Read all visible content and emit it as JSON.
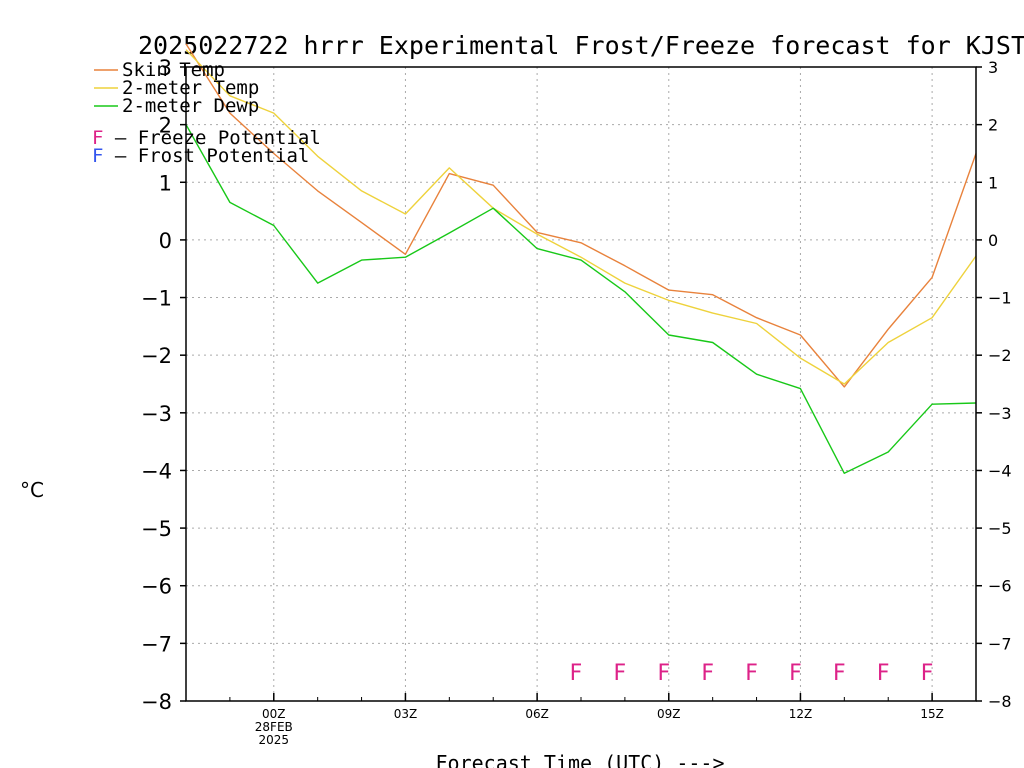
{
  "chart_data": {
    "type": "line",
    "title": "2025022722 hrrr Experimental Frost/Freeze forecast for KJST",
    "xlabel": "Forecast Time (UTC) --->",
    "ylabel": "°C",
    "ylim": [
      -8,
      3
    ],
    "y_ticks": [
      3,
      2,
      1,
      0,
      -1,
      -2,
      -3,
      -4,
      -5,
      -6,
      -7,
      -8
    ],
    "y_tick_labels": [
      "3",
      "2",
      "1",
      "0",
      "−1",
      "−2",
      "−3",
      "−4",
      "−5",
      "−6",
      "−7",
      "−8"
    ],
    "x": [
      "2025-02-27 22Z",
      "2025-02-27 23Z",
      "2025-02-28 00Z",
      "2025-02-28 01Z",
      "2025-02-28 02Z",
      "2025-02-28 03Z",
      "2025-02-28 04Z",
      "2025-02-28 05Z",
      "2025-02-28 06Z",
      "2025-02-28 07Z",
      "2025-02-28 08Z",
      "2025-02-28 09Z",
      "2025-02-28 10Z",
      "2025-02-28 11Z",
      "2025-02-28 12Z",
      "2025-02-28 13Z",
      "2025-02-28 14Z",
      "2025-02-28 15Z",
      "2025-02-28 16Z"
    ],
    "x_ticks": [
      {
        "hour": "2025-02-28 00Z",
        "lines": [
          "00Z",
          "28FEB",
          "2025"
        ]
      },
      {
        "hour": "2025-02-28 03Z",
        "lines": [
          "03Z"
        ]
      },
      {
        "hour": "2025-02-28 06Z",
        "lines": [
          "06Z"
        ]
      },
      {
        "hour": "2025-02-28 09Z",
        "lines": [
          "09Z"
        ]
      },
      {
        "hour": "2025-02-28 12Z",
        "lines": [
          "12Z"
        ]
      },
      {
        "hour": "2025-02-28 15Z",
        "lines": [
          "15Z"
        ]
      }
    ],
    "series": [
      {
        "name": "Skin Temp",
        "color": "#e8823c",
        "values": [
          3.4,
          2.2,
          1.5,
          0.85,
          0.3,
          -0.25,
          1.15,
          0.95,
          0.13,
          -0.05,
          -0.45,
          -0.87,
          -0.95,
          -1.35,
          -1.65,
          -2.55,
          -1.55,
          -0.65,
          1.5
        ]
      },
      {
        "name": "2-meter Temp",
        "color": "#eed23c",
        "values": [
          3.3,
          2.5,
          2.2,
          1.45,
          0.85,
          0.45,
          1.25,
          0.55,
          0.1,
          -0.3,
          -0.75,
          -1.05,
          -1.27,
          -1.45,
          -2.05,
          -2.5,
          -1.78,
          -1.35,
          -0.28
        ]
      },
      {
        "name": "2-meter Dewp",
        "color": "#18c818",
        "values": [
          2.0,
          0.65,
          0.25,
          -0.75,
          -0.35,
          -0.3,
          0.12,
          0.55,
          -0.15,
          -0.35,
          -0.9,
          -1.65,
          -1.78,
          -2.33,
          -2.58,
          -4.05,
          -3.68,
          -2.85,
          -2.83
        ]
      }
    ],
    "frost_freeze_marks": {
      "symbol": "F",
      "color": "#dd2288",
      "hours": [
        "2025-02-28 07Z",
        "2025-02-28 08Z",
        "2025-02-28 09Z",
        "2025-02-28 10Z",
        "2025-02-28 11Z",
        "2025-02-28 12Z",
        "2025-02-28 13Z",
        "2025-02-28 14Z",
        "2025-02-28 15Z"
      ]
    },
    "legend": {
      "placement": "top-left",
      "potential_items": [
        {
          "symbol": "F",
          "text": " – Freeze Potential",
          "color": "#dd2288"
        },
        {
          "symbol": "F",
          "text": " – Frost Potential",
          "color": "#3355ee"
        }
      ]
    },
    "grid": true
  }
}
